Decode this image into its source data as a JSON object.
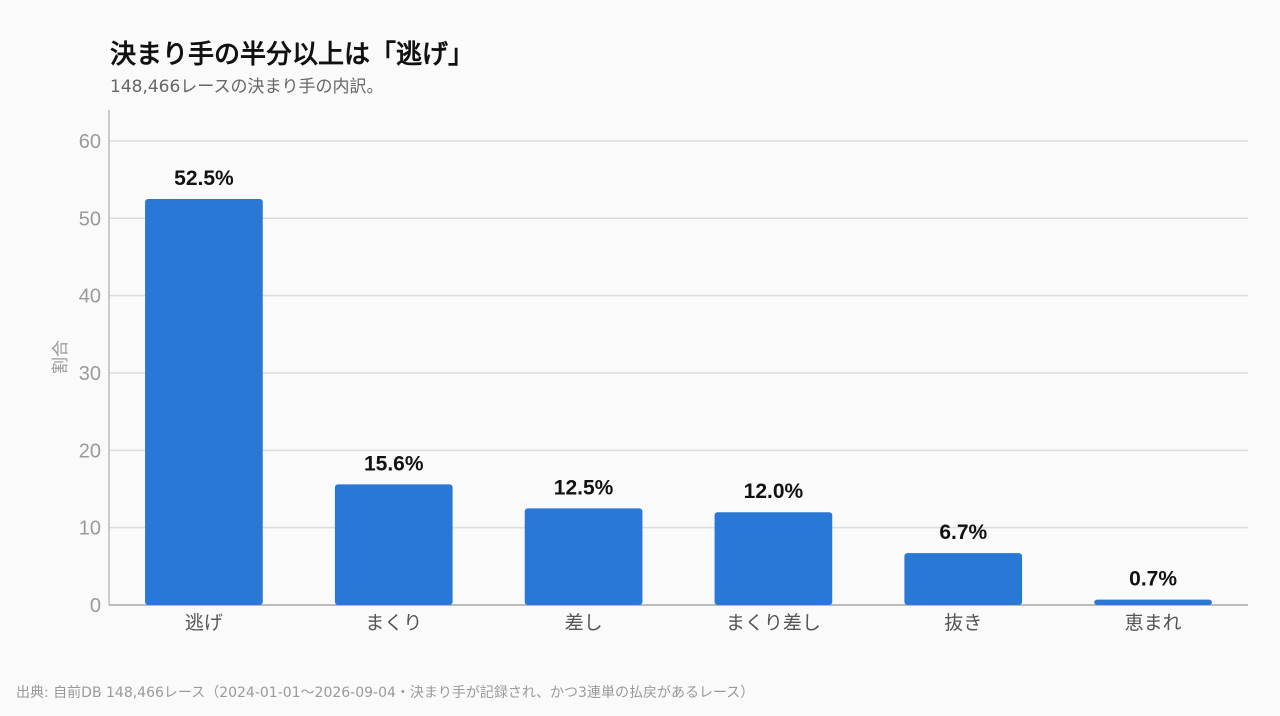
{
  "title": "決まり手の半分以上は「逃げ」",
  "subtitle": "148,466レースの決まり手の内訳。",
  "source": "出典: 自前DB 148,466レース（2024-01-01〜2026-09-04・決まり手が記録され、かつ3連単の払戻があるレース）",
  "colors": {
    "bar": "#2a78d6",
    "grid": "#dddddd",
    "axis": "#bbbbbb"
  },
  "chart_data": {
    "type": "bar",
    "categories": [
      "逃げ",
      "まくり",
      "差し",
      "まくり差し",
      "抜き",
      "恵まれ"
    ],
    "values": [
      52.5,
      15.6,
      12.5,
      12.0,
      6.7,
      0.7
    ],
    "value_labels": [
      "52.5%",
      "15.6%",
      "12.5%",
      "12.0%",
      "6.7%",
      "0.7%"
    ],
    "xlabel": "",
    "ylabel": "割合",
    "ylim": [
      0,
      64
    ],
    "yticks": [
      0,
      10,
      20,
      30,
      40,
      50,
      60
    ],
    "grid": true,
    "legend": "none"
  }
}
